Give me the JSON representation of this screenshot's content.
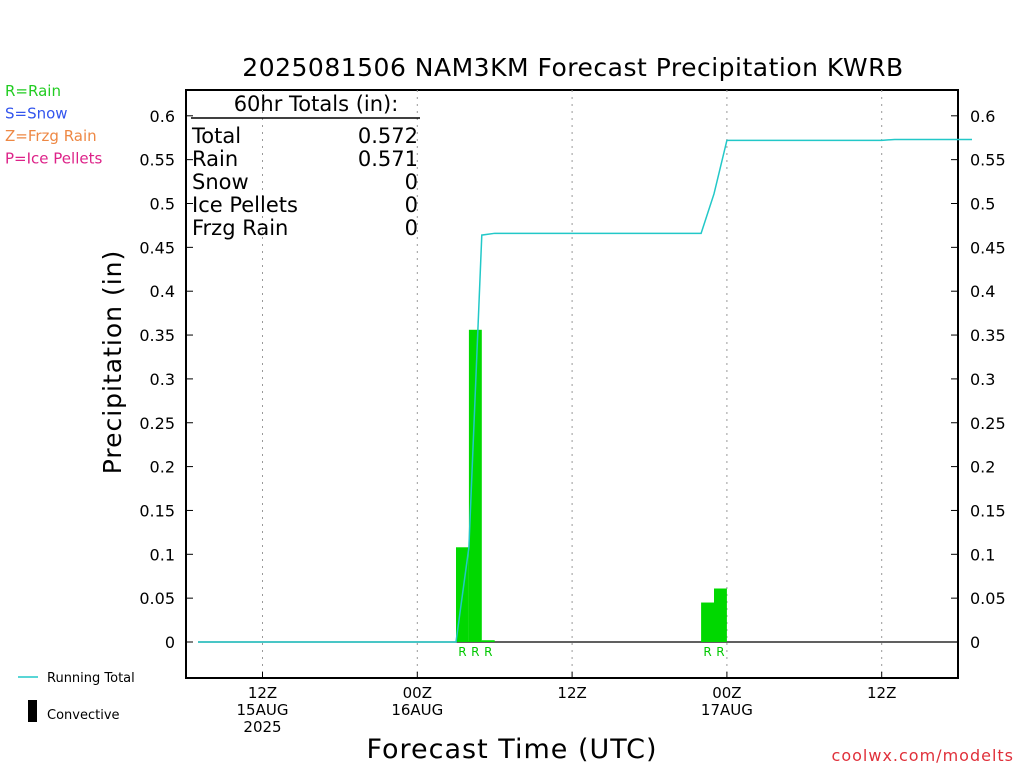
{
  "title": "2025081506 NAM3KM Forecast Precipitation KWRB",
  "ylabel": "Precipitation (in)",
  "xlabel": "Forecast Time (UTC)",
  "credit": "coolwx.com/modelts",
  "ptype_legend": [
    {
      "text": "R=Rain",
      "color": "#22cc22"
    },
    {
      "text": "S=Snow",
      "color": "#3355ee"
    },
    {
      "text": "Z=Frzg Rain",
      "color": "#ee8844"
    },
    {
      "text": "P=Ice Pellets",
      "color": "#dd2288"
    }
  ],
  "bottom_legend": {
    "running_total": "Running Total",
    "convective": "Convective",
    "running_total_color": "#22c8c8",
    "bar_color": "#00d800"
  },
  "totals": {
    "header": "60hr Totals (in):",
    "rows": [
      {
        "label": "Total",
        "value": "0.572"
      },
      {
        "label": "Rain",
        "value": "0.571"
      },
      {
        "label": "Snow",
        "value": "0"
      },
      {
        "label": "Ice Pellets",
        "value": "0"
      },
      {
        "label": "Frzg Rain",
        "value": "0"
      }
    ]
  },
  "chart_data": {
    "type": "bar",
    "x_unit": "hours since 2025-08-15 06Z",
    "xlim": [
      0,
      60
    ],
    "ylim": [
      -0.04,
      0.63
    ],
    "yticks": [
      "0",
      "0.05",
      "0.1",
      "0.15",
      "0.2",
      "0.25",
      "0.3",
      "0.35",
      "0.4",
      "0.45",
      "0.5",
      "0.55",
      "0.6"
    ],
    "ytick_values": [
      0,
      0.05,
      0.1,
      0.15,
      0.2,
      0.25,
      0.3,
      0.35,
      0.4,
      0.45,
      0.5,
      0.55,
      0.6
    ],
    "xticks": [
      {
        "x": 5,
        "lines": [
          "12Z",
          "15AUG",
          "2025"
        ]
      },
      {
        "x": 17,
        "lines": [
          "00Z",
          "16AUG"
        ]
      },
      {
        "x": 29,
        "lines": [
          "12Z"
        ]
      },
      {
        "x": 41,
        "lines": [
          "00Z",
          "17AUG"
        ]
      },
      {
        "x": 53,
        "lines": [
          "12Z"
        ]
      }
    ],
    "grid": "vertical dotted",
    "bars": [
      {
        "x_start": 20,
        "x_end": 21,
        "value": 0.108
      },
      {
        "x_start": 21,
        "x_end": 22,
        "value": 0.356
      },
      {
        "x_start": 22,
        "x_end": 23,
        "value": 0.002
      },
      {
        "x_start": 39,
        "x_end": 40,
        "value": 0.045
      },
      {
        "x_start": 40,
        "x_end": 41,
        "value": 0.061
      }
    ],
    "ptype_markers": [
      {
        "x": 20.5,
        "text": "R"
      },
      {
        "x": 21.5,
        "text": "R"
      },
      {
        "x": 22.5,
        "text": "R"
      },
      {
        "x": 39.5,
        "text": "R"
      },
      {
        "x": 40.5,
        "text": "R"
      }
    ],
    "running_total": {
      "name": "Running Total",
      "x": [
        0,
        20,
        21,
        22,
        23,
        39,
        40,
        41,
        53,
        54,
        60
      ],
      "y": [
        0,
        0,
        0.108,
        0.464,
        0.466,
        0.466,
        0.511,
        0.572,
        0.572,
        0.573,
        0.573
      ]
    }
  }
}
